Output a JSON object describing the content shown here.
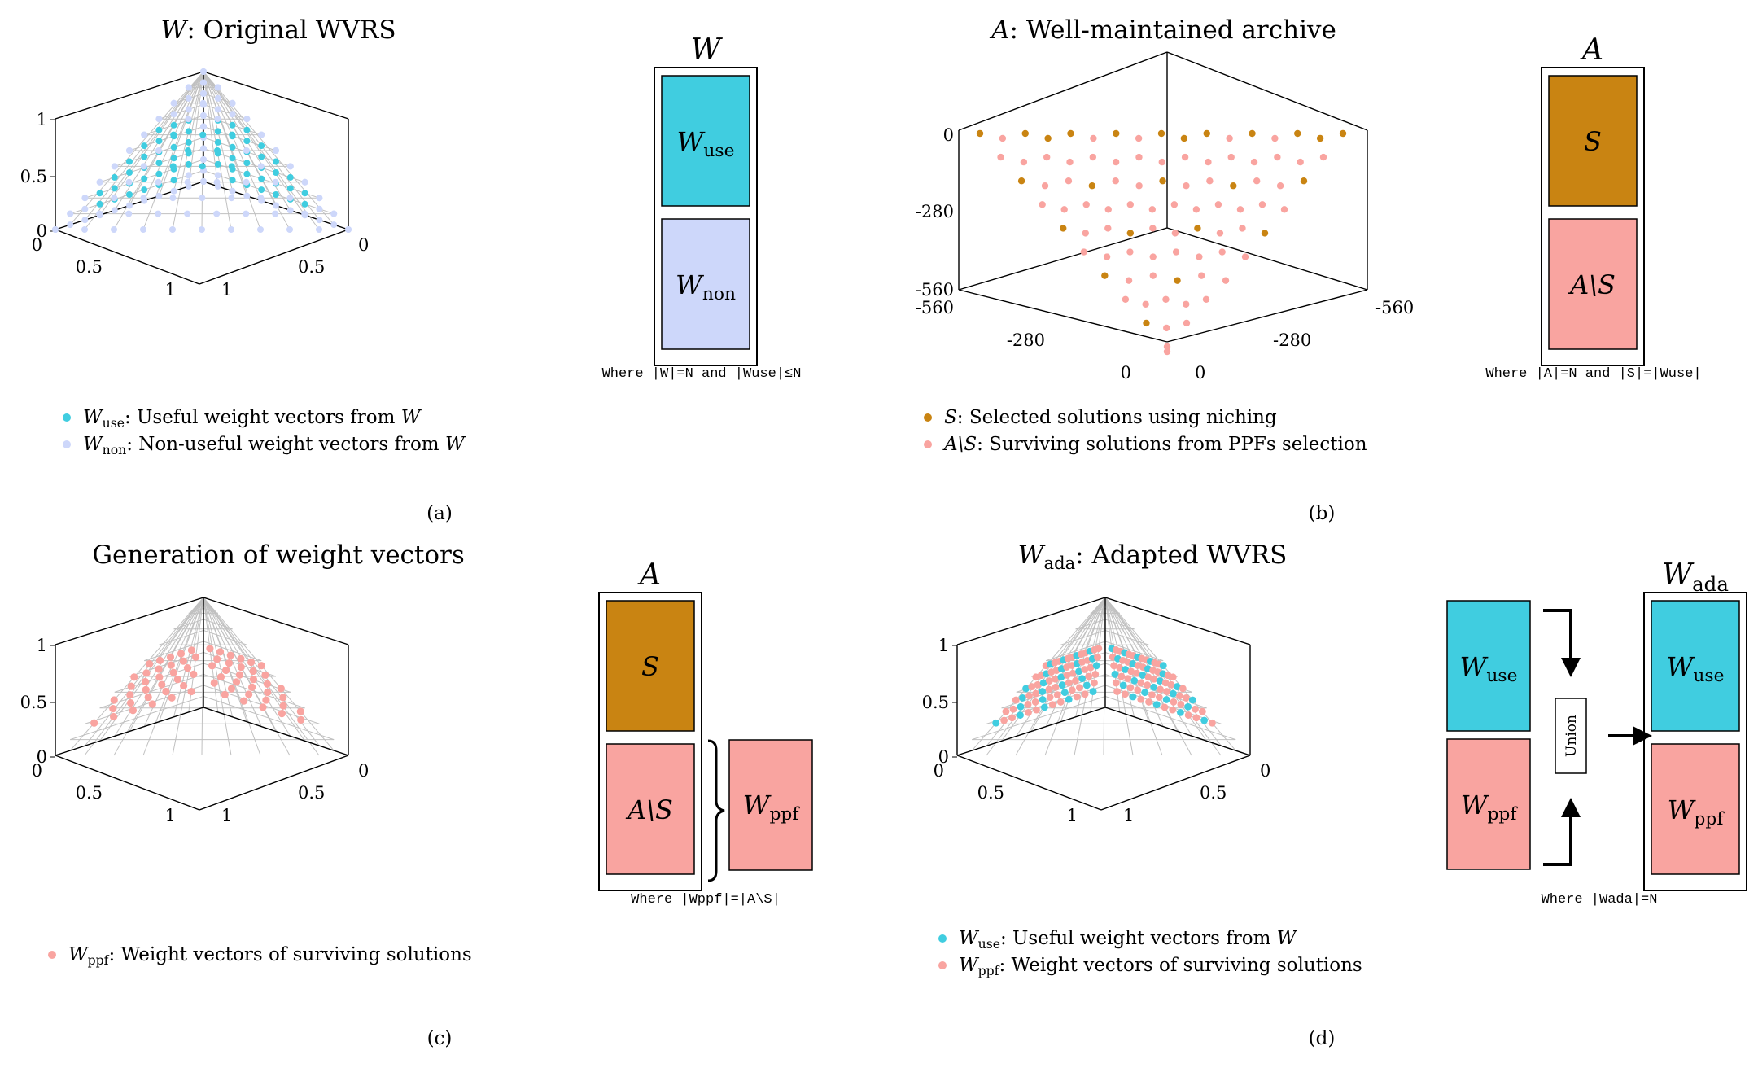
{
  "colors": {
    "w_use": "#40cde0",
    "w_non": "#cdd7fa",
    "selected": "#c98412",
    "surviving": "#f9a4a0",
    "grid": "#c0c0c0",
    "axis": "#000000"
  },
  "panels": [
    {
      "id": "a",
      "title": {
        "sym": "W",
        "sub": "",
        "rest": ": Original WVRS"
      },
      "caption": "(a)",
      "plot": {
        "type": "scatter3d",
        "z_ticks": [
          "1",
          "0.5",
          "0"
        ],
        "left_ticks": [
          "0",
          "0.5",
          "1"
        ],
        "right_ticks": [
          "0",
          "0.5",
          "1"
        ]
      },
      "legend": [
        {
          "sym": "W",
          "sub": "use",
          "text": ": Useful weight vectors from ",
          "tail": "W",
          "color_key": "w_use"
        },
        {
          "sym": "W",
          "sub": "non",
          "text": ": Non-useful weight vectors from ",
          "tail": "W",
          "color_key": "w_non"
        }
      ],
      "box_title": {
        "sym": "W",
        "sub": ""
      },
      "box_cells": [
        {
          "sym": "W",
          "sub": "use",
          "color_key": "w_use"
        },
        {
          "sym": "W",
          "sub": "non",
          "color_key": "w_non"
        }
      ],
      "box_note": "Where |W|=N and |Wuse|≤N"
    },
    {
      "id": "b",
      "title": {
        "sym": "A",
        "sub": "",
        "rest": ": Well-maintained archive"
      },
      "caption": "(b)",
      "plot": {
        "type": "scatter3d",
        "z_ticks": [
          "0",
          "-280",
          "-560"
        ],
        "left_ticks": [
          "-560",
          "-280",
          "0"
        ],
        "right_ticks": [
          "0",
          "-280",
          "-560"
        ]
      },
      "legend": [
        {
          "sym": "S",
          "sub": "",
          "text": ": Selected solutions using niching",
          "tail": "",
          "color_key": "selected"
        },
        {
          "sym": "A\\S",
          "sub": "",
          "text": ": Surviving solutions from PPFs selection",
          "tail": "",
          "color_key": "surviving"
        }
      ],
      "box_title": {
        "sym": "A",
        "sub": ""
      },
      "box_cells": [
        {
          "sym": "S",
          "sub": "",
          "color_key": "selected"
        },
        {
          "sym": "A\\S",
          "sub": "",
          "color_key": "surviving"
        }
      ],
      "box_note": "Where |A|=N and |S|=|Wuse|"
    },
    {
      "id": "c",
      "title": {
        "sym": "",
        "sub": "",
        "rest": "Generation of weight vectors"
      },
      "caption": "(c)",
      "plot": {
        "type": "scatter3d",
        "z_ticks": [
          "1",
          "0.5",
          "0"
        ],
        "left_ticks": [
          "0",
          "0.5",
          "1"
        ],
        "right_ticks": [
          "0",
          "0.5",
          "1"
        ]
      },
      "legend": [
        {
          "sym": "W",
          "sub": "ppf",
          "text": ": Weight vectors of surviving solutions",
          "tail": "",
          "color_key": "surviving"
        }
      ],
      "box_title": {
        "sym": "A",
        "sub": ""
      },
      "box_cells": [
        {
          "sym": "S",
          "sub": "",
          "color_key": "selected"
        },
        {
          "sym": "A\\S",
          "sub": "",
          "color_key": "surviving"
        }
      ],
      "side_cell": {
        "sym": "W",
        "sub": "ppf",
        "color_key": "surviving"
      },
      "box_note": "Where |Wppf|=|A\\S|"
    },
    {
      "id": "d",
      "title": {
        "sym": "W",
        "sub": "ada",
        "rest": ": Adapted WVRS"
      },
      "caption": "(d)",
      "plot": {
        "type": "scatter3d",
        "z_ticks": [
          "1",
          "0.5",
          "0"
        ],
        "left_ticks": [
          "0",
          "0.5",
          "1"
        ],
        "right_ticks": [
          "0",
          "0.5",
          "1"
        ]
      },
      "legend": [
        {
          "sym": "W",
          "sub": "use",
          "text": ": Useful weight vectors from ",
          "tail": "W",
          "color_key": "w_use"
        },
        {
          "sym": "W",
          "sub": "ppf",
          "text": ": Weight vectors of surviving solutions",
          "tail": "",
          "color_key": "surviving"
        }
      ],
      "box_title": {
        "sym": "W",
        "sub": "ada"
      },
      "input_cells": [
        {
          "sym": "W",
          "sub": "use",
          "color_key": "w_use"
        },
        {
          "sym": "W",
          "sub": "ppf",
          "color_key": "surviving"
        }
      ],
      "union_label": "Union",
      "box_cells": [
        {
          "sym": "W",
          "sub": "use",
          "color_key": "w_use"
        },
        {
          "sym": "W",
          "sub": "ppf",
          "color_key": "surviving"
        }
      ],
      "box_note": "Where |Wada|=N"
    }
  ]
}
